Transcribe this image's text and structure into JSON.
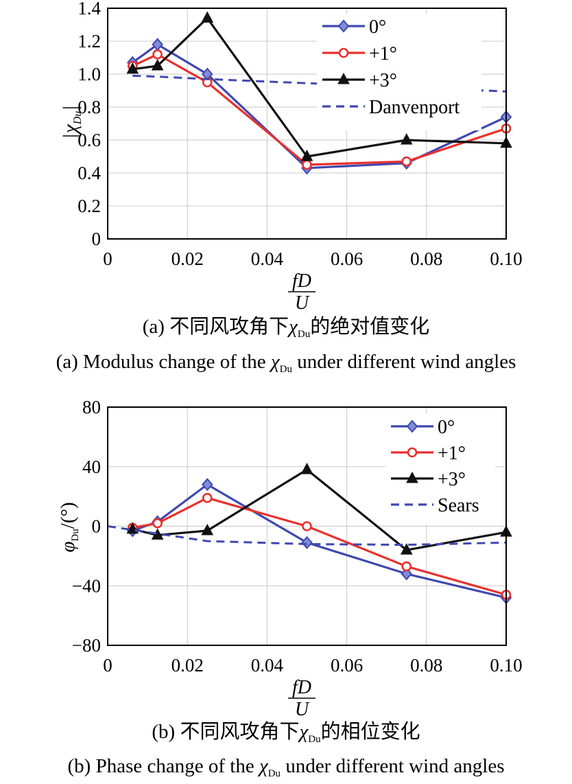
{
  "charts": [
    {
      "id": "a",
      "type": "line",
      "ylabel_main": "|χ",
      "ylabel_sub": "Du",
      "ylabel_close": "|",
      "xlabel_num": "fD",
      "xlabel_den": "U",
      "xlim": [
        0,
        0.1
      ],
      "ylim": [
        0,
        1.4
      ],
      "xticks": [
        "0",
        "0.02",
        "0.04",
        "0.06",
        "0.08",
        "0.10"
      ],
      "yticks": [
        "0",
        "0.2",
        "0.4",
        "0.6",
        "0.8",
        "1.0",
        "1.2",
        "1.4"
      ],
      "grid": true,
      "legend_position": "top-right",
      "caption_cn_prefix": "(a) 不同风攻角下",
      "caption_cn_sym": "χ",
      "caption_cn_sub": "Du",
      "caption_cn_suffix": "的绝对值变化",
      "caption_en_prefix": "(a) Modulus change of the ",
      "caption_en_sym": "χ",
      "caption_en_sub": "Du",
      "caption_en_suffix": " under different wind angles",
      "series": [
        {
          "name": "0°",
          "color": "#3f48b0",
          "marker": "diamond",
          "dash": false,
          "x": [
            0.00625,
            0.0125,
            0.025,
            0.05,
            0.075,
            0.1
          ],
          "y": [
            1.07,
            1.18,
            1.0,
            0.43,
            0.46,
            0.74
          ]
        },
        {
          "name": "+1°",
          "color": "#e8312d",
          "marker": "circle",
          "dash": false,
          "x": [
            0.00625,
            0.0125,
            0.025,
            0.05,
            0.075,
            0.1
          ],
          "y": [
            1.05,
            1.12,
            0.95,
            0.45,
            0.47,
            0.67
          ]
        },
        {
          "name": "+3°",
          "color": "#111111",
          "marker": "triangle",
          "dash": false,
          "x": [
            0.00625,
            0.0125,
            0.025,
            0.05,
            0.075,
            0.1
          ],
          "y": [
            1.03,
            1.05,
            1.34,
            0.5,
            0.6,
            0.58
          ]
        },
        {
          "name": "Danvenport",
          "color": "#3f48b0",
          "marker": "none",
          "dash": true,
          "x": [
            0.00625,
            0.0125,
            0.025,
            0.05,
            0.075,
            0.1
          ],
          "y": [
            0.99,
            0.985,
            0.97,
            0.945,
            0.92,
            0.895
          ]
        }
      ]
    },
    {
      "id": "b",
      "type": "line",
      "ylabel_main": "φ",
      "ylabel_sub": "Du",
      "ylabel_close": "/(°)",
      "xlabel_num": "fD",
      "xlabel_den": "U",
      "xlim": [
        0,
        0.1
      ],
      "ylim": [
        -80,
        80
      ],
      "xticks": [
        "0",
        "0.02",
        "0.04",
        "0.06",
        "0.08",
        "0.10"
      ],
      "yticks": [
        "−80",
        "−40",
        "0",
        "40",
        "80"
      ],
      "grid": true,
      "legend_position": "top-right",
      "caption_cn_prefix": "(b) 不同风攻角下",
      "caption_cn_sym": "χ",
      "caption_cn_sub": "Du",
      "caption_cn_suffix": "的相位变化",
      "caption_en_prefix": "(b) Phase change of the ",
      "caption_en_sym": "χ",
      "caption_en_sub": "Du",
      "caption_en_suffix": " under different wind angles",
      "series": [
        {
          "name": "0°",
          "color": "#3f48b0",
          "marker": "diamond",
          "dash": false,
          "x": [
            0.00625,
            0.0125,
            0.025,
            0.05,
            0.075,
            0.1
          ],
          "y": [
            -3,
            3,
            28,
            -11,
            -32,
            -48
          ]
        },
        {
          "name": "+1°",
          "color": "#e8312d",
          "marker": "circle",
          "dash": false,
          "x": [
            0.00625,
            0.0125,
            0.025,
            0.05,
            0.075,
            0.1
          ],
          "y": [
            -1,
            2,
            19,
            0,
            -27,
            -46
          ]
        },
        {
          "name": "+3°",
          "color": "#111111",
          "marker": "triangle",
          "dash": false,
          "x": [
            0.00625,
            0.0125,
            0.025,
            0.05,
            0.075,
            0.1
          ],
          "y": [
            -2,
            -6,
            -3,
            38,
            -16,
            -4
          ]
        },
        {
          "name": "Sears",
          "color": "#3f48b0",
          "marker": "none",
          "dash": true,
          "x": [
            0,
            0.025,
            0.05,
            0.075,
            0.1
          ],
          "y": [
            0,
            -10,
            -12,
            -12.5,
            -11
          ]
        }
      ]
    }
  ]
}
